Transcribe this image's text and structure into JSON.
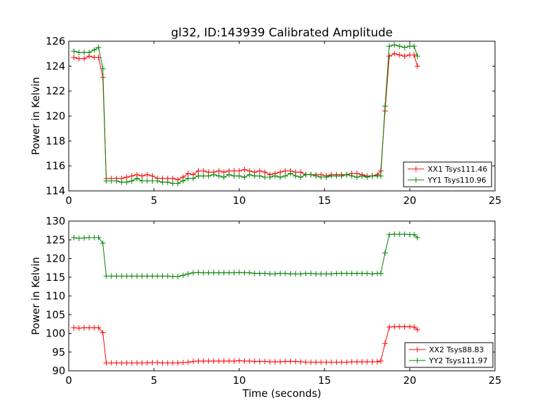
{
  "figure": {
    "title": "gl32, ID:143939 Calibrated Amplitude",
    "xlabel": "Time (seconds)"
  },
  "chart_data": [
    {
      "type": "line",
      "title": "gl32, ID:143939 Calibrated Amplitude",
      "xlabel": "",
      "ylabel": "Power in Kelvin",
      "xlim": [
        0,
        25
      ],
      "ylim": [
        114,
        126
      ],
      "xticks": [
        0,
        5,
        10,
        15,
        20,
        25
      ],
      "yticks": [
        114,
        116,
        118,
        120,
        122,
        124,
        126
      ],
      "grid": false,
      "legend_position": "lower-right",
      "x": [
        0.3,
        0.6,
        0.9,
        1.2,
        1.5,
        1.75,
        2.0,
        2.2,
        2.5,
        2.8,
        3.1,
        3.4,
        3.7,
        4.0,
        4.3,
        4.6,
        4.9,
        5.2,
        5.5,
        5.8,
        6.1,
        6.4,
        6.7,
        7.0,
        7.3,
        7.6,
        7.9,
        8.2,
        8.5,
        8.8,
        9.1,
        9.4,
        9.7,
        10.0,
        10.3,
        10.6,
        10.9,
        11.2,
        11.5,
        11.8,
        12.1,
        12.4,
        12.7,
        13.0,
        13.3,
        13.6,
        13.9,
        14.2,
        14.5,
        14.8,
        15.1,
        15.4,
        15.7,
        16.0,
        16.3,
        16.6,
        16.9,
        17.2,
        17.5,
        17.8,
        18.1,
        18.3,
        18.55,
        18.8,
        19.1,
        19.4,
        19.7,
        20.0,
        20.25,
        20.45
      ],
      "series": [
        {
          "name": "XX1 Tsys111.46",
          "color": "#ff0000",
          "values": [
            124.7,
            124.6,
            124.6,
            124.8,
            124.7,
            124.7,
            123.1,
            115.0,
            115.0,
            115.0,
            115.0,
            115.1,
            115.2,
            115.3,
            115.2,
            115.3,
            115.2,
            115.0,
            115.0,
            115.0,
            115.0,
            114.9,
            115.1,
            115.4,
            115.3,
            115.6,
            115.6,
            115.5,
            115.5,
            115.6,
            115.5,
            115.6,
            115.6,
            115.6,
            115.7,
            115.6,
            115.5,
            115.6,
            115.5,
            115.3,
            115.4,
            115.5,
            115.6,
            115.6,
            115.5,
            115.5,
            115.3,
            115.3,
            115.3,
            115.3,
            115.2,
            115.3,
            115.3,
            115.3,
            115.3,
            115.4,
            115.4,
            115.3,
            115.2,
            115.2,
            115.3,
            115.6,
            120.4,
            124.8,
            125.0,
            124.9,
            124.8,
            124.9,
            124.9,
            124.0
          ]
        },
        {
          "name": "YY1 Tsys110.96",
          "color": "#008000",
          "values": [
            125.2,
            125.1,
            125.1,
            125.1,
            125.3,
            125.5,
            123.8,
            114.8,
            114.8,
            114.8,
            114.7,
            114.7,
            114.8,
            115.0,
            114.8,
            114.8,
            114.8,
            114.8,
            114.7,
            114.7,
            114.6,
            114.6,
            114.8,
            115.0,
            115.0,
            115.2,
            115.2,
            115.2,
            115.3,
            115.2,
            115.1,
            115.3,
            115.2,
            115.2,
            115.1,
            115.3,
            115.2,
            115.2,
            115.1,
            115.1,
            115.2,
            115.1,
            115.2,
            115.4,
            115.2,
            115.1,
            115.3,
            115.3,
            115.2,
            115.1,
            115.1,
            115.2,
            115.2,
            115.2,
            115.3,
            115.2,
            115.1,
            115.2,
            115.1,
            115.2,
            115.2,
            115.2,
            120.8,
            125.6,
            125.7,
            125.6,
            125.5,
            125.6,
            125.6,
            124.8
          ]
        }
      ]
    },
    {
      "type": "line",
      "title": "",
      "xlabel": "Time (seconds)",
      "ylabel": "Power in Kelvin",
      "xlim": [
        0,
        25
      ],
      "ylim": [
        90,
        130
      ],
      "xticks": [
        0,
        5,
        10,
        15,
        20,
        25
      ],
      "yticks": [
        90,
        95,
        100,
        105,
        110,
        115,
        120,
        125,
        130
      ],
      "grid": false,
      "legend_position": "lower-right",
      "x": [
        0.3,
        0.6,
        0.9,
        1.2,
        1.5,
        1.75,
        2.0,
        2.2,
        2.5,
        2.8,
        3.1,
        3.4,
        3.7,
        4.0,
        4.3,
        4.6,
        4.9,
        5.2,
        5.5,
        5.8,
        6.1,
        6.4,
        6.7,
        7.0,
        7.3,
        7.6,
        7.9,
        8.2,
        8.5,
        8.8,
        9.1,
        9.4,
        9.7,
        10.0,
        10.3,
        10.6,
        10.9,
        11.2,
        11.5,
        11.8,
        12.1,
        12.4,
        12.7,
        13.0,
        13.3,
        13.6,
        13.9,
        14.2,
        14.5,
        14.8,
        15.1,
        15.4,
        15.7,
        16.0,
        16.3,
        16.6,
        16.9,
        17.2,
        17.5,
        17.8,
        18.1,
        18.3,
        18.55,
        18.8,
        19.1,
        19.4,
        19.7,
        20.0,
        20.25,
        20.45
      ],
      "series": [
        {
          "name": "XX2 Tsys88.83",
          "color": "#ff0000",
          "values": [
            101.5,
            101.4,
            101.5,
            101.5,
            101.5,
            101.5,
            100.2,
            92.1,
            92.1,
            92.1,
            92.1,
            92.1,
            92.1,
            92.1,
            92.1,
            92.1,
            92.2,
            92.2,
            92.1,
            92.1,
            92.1,
            92.1,
            92.2,
            92.3,
            92.5,
            92.6,
            92.6,
            92.6,
            92.6,
            92.6,
            92.6,
            92.6,
            92.6,
            92.7,
            92.6,
            92.6,
            92.5,
            92.5,
            92.5,
            92.4,
            92.4,
            92.4,
            92.5,
            92.5,
            92.5,
            92.4,
            92.3,
            92.3,
            92.3,
            92.3,
            92.3,
            92.3,
            92.3,
            92.3,
            92.3,
            92.4,
            92.4,
            92.4,
            92.4,
            92.4,
            92.4,
            92.6,
            97.3,
            101.7,
            101.8,
            101.8,
            101.8,
            101.8,
            101.7,
            101.0
          ]
        },
        {
          "name": "YY2 Tsys111.97",
          "color": "#008000",
          "values": [
            125.6,
            125.4,
            125.5,
            125.6,
            125.6,
            125.6,
            124.1,
            115.3,
            115.3,
            115.3,
            115.3,
            115.3,
            115.3,
            115.3,
            115.3,
            115.3,
            115.3,
            115.3,
            115.3,
            115.3,
            115.2,
            115.2,
            115.5,
            115.9,
            116.2,
            116.3,
            116.2,
            116.2,
            116.2,
            116.2,
            116.2,
            116.2,
            116.2,
            116.3,
            116.2,
            116.2,
            116.0,
            116.0,
            116.0,
            115.9,
            115.9,
            116.0,
            116.0,
            115.9,
            115.9,
            115.9,
            116.0,
            116.0,
            115.9,
            115.9,
            115.9,
            115.9,
            116.0,
            116.0,
            116.0,
            116.0,
            116.0,
            116.0,
            116.0,
            115.9,
            116.0,
            116.0,
            121.5,
            126.4,
            126.5,
            126.5,
            126.5,
            126.4,
            126.4,
            125.6
          ]
        }
      ]
    }
  ]
}
